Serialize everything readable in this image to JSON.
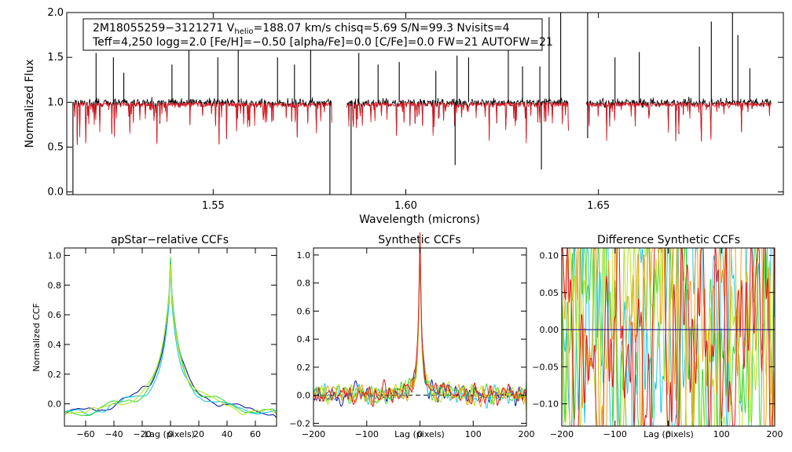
{
  "chart_data": [
    {
      "type": "line",
      "name": "spectrum",
      "xlabel": "Wavelength (microns)",
      "ylabel": "Normalized Flux",
      "xlim": [
        1.512,
        1.698
      ],
      "ylim": [
        -0.03,
        2.0
      ],
      "xticks": [
        {
          "v": 1.55,
          "label": "1.55"
        },
        {
          "v": 1.6,
          "label": "1.60"
        },
        {
          "v": 1.65,
          "label": "1.65"
        }
      ],
      "yticks": [
        {
          "v": 0.0,
          "label": "0.0"
        },
        {
          "v": 0.5,
          "label": "0.5"
        },
        {
          "v": 1.0,
          "label": "1.0"
        },
        {
          "v": 1.5,
          "label": "1.5"
        },
        {
          "v": 2.0,
          "label": "2.0"
        }
      ],
      "info_line1_prefix": "2M18055259−3121271  V",
      "info_line1_subscript": "helio",
      "info_line1_suffix": "=188.07 km/s  chisq=5.69  S/N=99.3  Nvisits=4",
      "info_line2": "Teff=4,250 logg=2.0 [Fe/H]=−0.50 [alpha/Fe]=0.0 [C/Fe]=0.0 FW=21 AUTOFW=21",
      "chips": [
        [
          1.5138,
          1.5808
        ],
        [
          1.5847,
          1.6422
        ],
        [
          1.6468,
          1.6948
        ]
      ],
      "series": [
        {
          "name": "observed",
          "color": "#000000"
        },
        {
          "name": "model",
          "color": "#e8141e"
        }
      ],
      "spikes_up": [
        1.5196,
        1.5241,
        1.5268,
        1.5393,
        1.5437,
        1.5512,
        1.5565,
        1.5667,
        1.5711,
        1.5753,
        1.5878,
        1.5928,
        1.5983,
        1.6078,
        1.6133,
        1.6163,
        1.6266,
        1.6303,
        1.6348,
        1.6372,
        1.6402,
        1.6472,
        1.6543,
        1.6606,
        1.6762,
        1.6793,
        1.6848,
        1.6862,
        1.6893
      ],
      "spike_heights": [
        1.55,
        1.5,
        1.33,
        1.42,
        1.8,
        1.5,
        1.68,
        1.5,
        1.42,
        1.65,
        1.55,
        1.42,
        1.45,
        1.35,
        1.52,
        1.5,
        1.65,
        1.4,
        1.4,
        1.95,
        2.0,
        2.0,
        1.5,
        1.56,
        1.62,
        1.9,
        2.0,
        1.75,
        1.38
      ],
      "spikes_down": [
        1.5136,
        1.5803,
        1.5858,
        1.6128,
        1.6352,
        1.6472
      ],
      "spike_depths": [
        -0.05,
        -0.05,
        -0.05,
        0.3,
        0.25,
        0.6
      ]
    },
    {
      "type": "line",
      "name": "apstar-ccf",
      "title": "apStar−relative CCFs",
      "xlabel": "Lag (pixels)",
      "ylabel": "Normalized CCF",
      "xlim": [
        -75,
        75
      ],
      "ylim": [
        -0.15,
        1.05
      ],
      "xticks": [
        {
          "v": -60,
          "label": "−60"
        },
        {
          "v": -40,
          "label": "−40"
        },
        {
          "v": -20,
          "label": "−20"
        },
        {
          "v": 0,
          "label": "0"
        },
        {
          "v": 20,
          "label": "20"
        },
        {
          "v": 40,
          "label": "40"
        },
        {
          "v": 60,
          "label": "60"
        }
      ],
      "yticks": [
        {
          "v": 0.0,
          "label": "0.0"
        },
        {
          "v": 0.2,
          "label": "0.2"
        },
        {
          "v": 0.4,
          "label": "0.4"
        },
        {
          "v": 0.6,
          "label": "0.6"
        },
        {
          "v": 0.8,
          "label": "0.8"
        },
        {
          "v": 1.0,
          "label": "1.0"
        }
      ],
      "series": [
        {
          "name": "visit-1",
          "color": "#0a1e9c",
          "peak": 0.97,
          "width": 4.5,
          "wing": 0.26
        },
        {
          "name": "visit-2",
          "color": "#1ec8e8",
          "peak": 0.93,
          "width": 4.0,
          "wing": 0.2
        },
        {
          "name": "visit-3",
          "color": "#3cd83c",
          "peak": 0.99,
          "width": 5.0,
          "wing": 0.22
        },
        {
          "name": "visit-4",
          "color": "#b4e61e",
          "peak": 0.94,
          "width": 4.8,
          "wing": 0.24
        }
      ]
    },
    {
      "type": "line",
      "name": "synthetic-ccf",
      "title": "Synthetic CCFs",
      "xlabel": "Lag (pixels)",
      "xlim": [
        -200,
        200
      ],
      "ylim": [
        -0.22,
        1.05
      ],
      "xticks": [
        {
          "v": -200,
          "label": "−200"
        },
        {
          "v": -100,
          "label": "−100"
        },
        {
          "v": 0,
          "label": "0"
        },
        {
          "v": 100,
          "label": "100"
        },
        {
          "v": 200,
          "label": "200"
        }
      ],
      "yticks": [
        {
          "v": -0.2,
          "label": "−0.2"
        },
        {
          "v": 0.0,
          "label": "0.0"
        },
        {
          "v": 0.2,
          "label": "0.2"
        },
        {
          "v": 0.4,
          "label": "0.4"
        },
        {
          "v": 0.6,
          "label": "0.6"
        },
        {
          "v": 0.8,
          "label": "0.8"
        },
        {
          "v": 1.0,
          "label": "1.0"
        }
      ],
      "series": [
        {
          "name": "visit-1",
          "color": "#0a1e9c"
        },
        {
          "name": "visit-2",
          "color": "#1ec8e8"
        },
        {
          "name": "visit-3",
          "color": "#3cd83c"
        },
        {
          "name": "visit-4",
          "color": "#b4e61e"
        },
        {
          "name": "visit-5",
          "color": "#f0a018"
        },
        {
          "name": "visit-6",
          "color": "#e8141e"
        }
      ]
    },
    {
      "type": "line",
      "name": "difference-ccf",
      "title": "Difference Synthetic CCFs",
      "xlabel": "Lag (pixels)",
      "xlim": [
        -200,
        200
      ],
      "ylim": [
        -0.13,
        0.11
      ],
      "xticks": [
        {
          "v": -200,
          "label": "−200"
        },
        {
          "v": -100,
          "label": "−100"
        },
        {
          "v": 0,
          "label": "0"
        },
        {
          "v": 100,
          "label": "100"
        },
        {
          "v": 200,
          "label": "200"
        }
      ],
      "yticks": [
        {
          "v": -0.1,
          "label": "−0.10"
        },
        {
          "v": -0.05,
          "label": "−0.05"
        },
        {
          "v": 0.0,
          "label": "0.00"
        },
        {
          "v": 0.05,
          "label": "0.05"
        },
        {
          "v": 0.1,
          "label": "0.10"
        }
      ],
      "zero_line_color": "#1a1aa0",
      "series": [
        {
          "name": "visit-1",
          "color": "#1ec8e8"
        },
        {
          "name": "visit-2",
          "color": "#3cd83c"
        },
        {
          "name": "visit-3",
          "color": "#b4e61e"
        },
        {
          "name": "visit-4",
          "color": "#f0a018"
        },
        {
          "name": "visit-5",
          "color": "#e8141e"
        }
      ]
    }
  ]
}
